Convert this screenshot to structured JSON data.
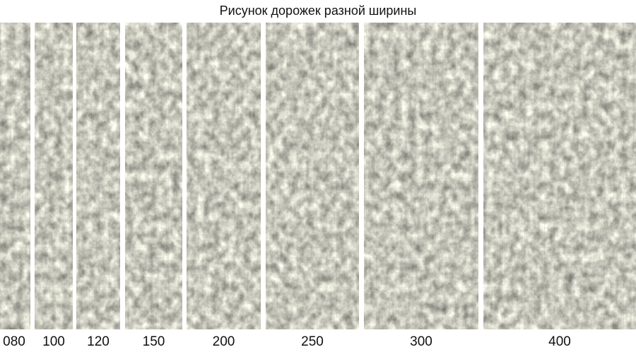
{
  "header": {
    "title": "Рисунок дорожек разной ширины"
  },
  "panels": [
    {
      "label": "080"
    },
    {
      "label": "100"
    },
    {
      "label": "120"
    },
    {
      "label": "150"
    },
    {
      "label": "200"
    },
    {
      "label": "250"
    },
    {
      "label": "300"
    },
    {
      "label": "400"
    }
  ]
}
